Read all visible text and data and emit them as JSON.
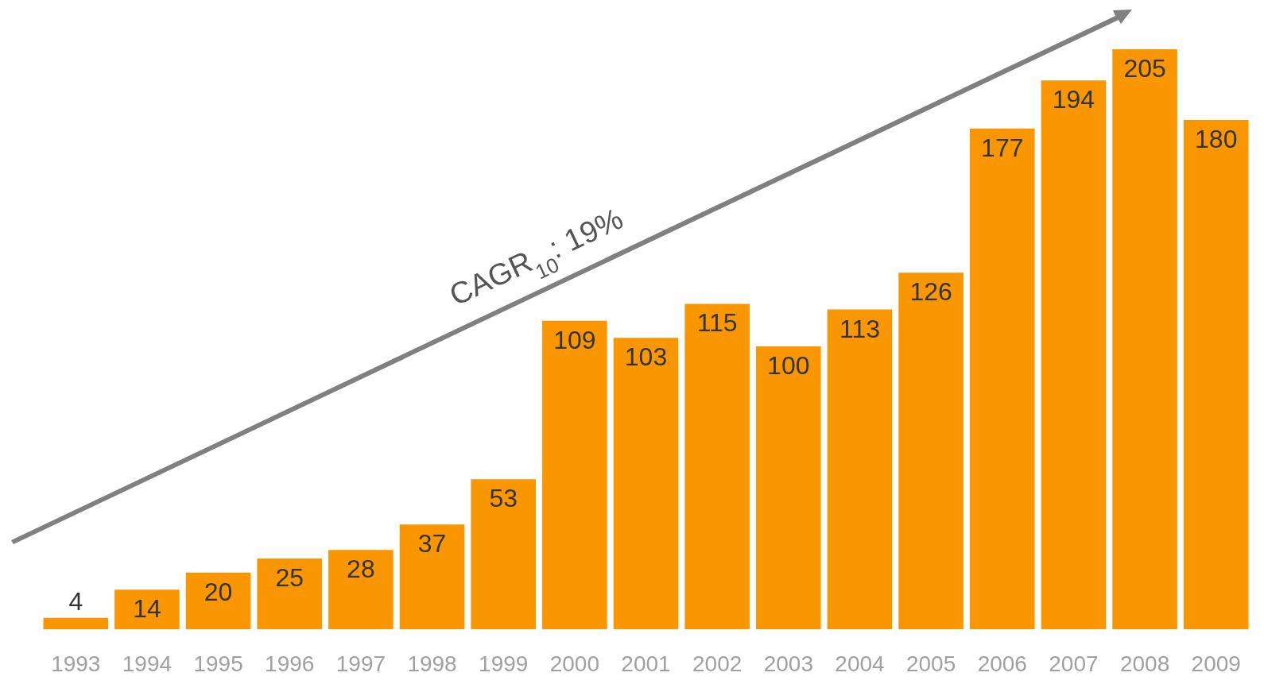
{
  "chart_data": {
    "type": "bar",
    "categories": [
      "1993",
      "1994",
      "1995",
      "1996",
      "1997",
      "1998",
      "1999",
      "2000",
      "2001",
      "2002",
      "2003",
      "2004",
      "2005",
      "2006",
      "2007",
      "2008",
      "2009"
    ],
    "values": [
      4,
      14,
      20,
      25,
      28,
      37,
      53,
      109,
      103,
      115,
      100,
      113,
      126,
      177,
      194,
      205,
      180
    ],
    "color": "#fa9600",
    "data_labels": true,
    "tick_labels": "x",
    "grid": false,
    "annotations": [
      "CAGR$_{10}$: 19%"
    ]
  }
}
